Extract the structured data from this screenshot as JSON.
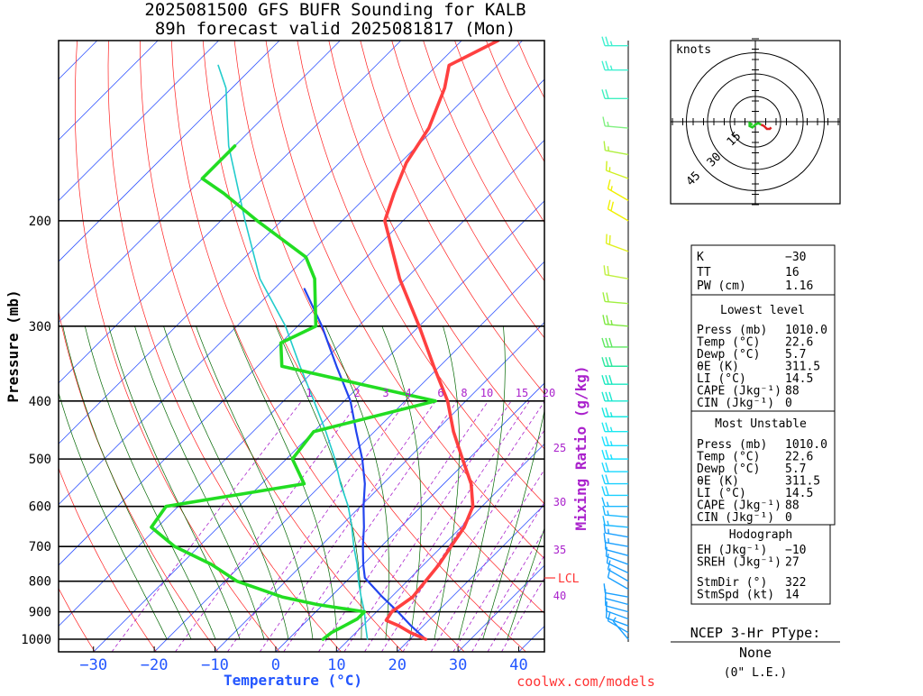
{
  "title": {
    "line1": "2025081500 GFS BUFR Sounding for KALB",
    "line2": "89h forecast valid 2025081817 (Mon)"
  },
  "footer_credit": "coolwx.com/models",
  "colors": {
    "temperature": "#ff4040",
    "dewpoint": "#22dd22",
    "parcel": "#2244ee",
    "wetbulb": "#22cccc",
    "isotherm": "#3355ff",
    "dry_adiabat": "#ff2020",
    "moist_adiabat": "#006600",
    "mixing_ratio": "#aa22cc",
    "mixing_label": "#aa22cc",
    "temp_axis_label": "#2255ff",
    "credit": "#ff3333"
  },
  "chart_data": [
    {
      "type": "line",
      "name": "skew-t",
      "xlabel": "Temperature (°C)",
      "ylabel": "Pressure (mb)",
      "xlim": [
        -38,
        42
      ],
      "ylim": [
        1050,
        100
      ],
      "y_scale": "log",
      "skew_note": "isotherms skewed 45°",
      "x_ticks": [
        -30,
        -20,
        -10,
        0,
        10,
        20,
        30,
        40
      ],
      "x_tick_labels": [
        "−30",
        "−20",
        "−10",
        "0",
        "10",
        "20",
        "30",
        "40"
      ],
      "y_ticks": [
        1000,
        900,
        800,
        700,
        600,
        500,
        400,
        300,
        200
      ],
      "grid": true,
      "mixing_ratio_axis_label": "Mixing Ratio (g/kg)",
      "mixing_ratio_labels_top": [
        "1",
        "2",
        "3",
        "4",
        "6",
        "8",
        "10",
        "15",
        "20"
      ],
      "mixing_ratio_labels_side": [
        "25",
        "30",
        "35",
        "40"
      ],
      "lcl_label": "LCL",
      "lcl_pressure": 790,
      "series": [
        {
          "key": "temperature",
          "points": [
            [
              1000,
              22.6
            ],
            [
              975,
              19
            ],
            [
              950,
              16
            ],
            [
              930,
              13
            ],
            [
              900,
              12.5
            ],
            [
              875,
              13
            ],
            [
              850,
              13.5
            ],
            [
              800,
              13
            ],
            [
              750,
              12.5
            ],
            [
              700,
              11.5
            ],
            [
              650,
              10.5
            ],
            [
              600,
              8.5
            ],
            [
              550,
              4.5
            ],
            [
              500,
              -1
            ],
            [
              450,
              -7
            ],
            [
              400,
              -13
            ],
            [
              350,
              -21
            ],
            [
              300,
              -30
            ],
            [
              250,
              -41
            ],
            [
              200,
              -53
            ],
            [
              180,
              -56
            ],
            [
              160,
              -59
            ],
            [
              140,
              -61
            ],
            [
              120,
              -65
            ],
            [
              110,
              -68
            ],
            [
              100,
              -64
            ]
          ]
        },
        {
          "key": "dewpoint",
          "points": [
            [
              1000,
              5.7
            ],
            [
              975,
              6
            ],
            [
              950,
              7
            ],
            [
              925,
              8
            ],
            [
              900,
              8
            ],
            [
              875,
              -1
            ],
            [
              850,
              -8
            ],
            [
              800,
              -18
            ],
            [
              750,
              -25
            ],
            [
              700,
              -34
            ],
            [
              650,
              -41
            ],
            [
              600,
              -42
            ],
            [
              550,
              -23
            ],
            [
              500,
              -29
            ],
            [
              450,
              -30
            ],
            [
              400,
              -15
            ],
            [
              375,
              -30
            ],
            [
              350,
              -46
            ],
            [
              320,
              -50
            ],
            [
              300,
              -47
            ],
            [
              250,
              -55
            ],
            [
              230,
              -60
            ],
            [
              200,
              -74
            ],
            [
              180,
              -84
            ],
            [
              170,
              -90
            ],
            [
              160,
              -90
            ],
            [
              150,
              -90
            ]
          ]
        },
        {
          "key": "parcel",
          "points": [
            [
              1000,
              22.6
            ],
            [
              950,
              18
            ],
            [
              900,
              13.5
            ],
            [
              850,
              8.5
            ],
            [
              790,
              2.5
            ],
            [
              750,
              0
            ],
            [
              700,
              -3
            ],
            [
              650,
              -6
            ],
            [
              600,
              -9.5
            ],
            [
              550,
              -13
            ],
            [
              500,
              -17.5
            ],
            [
              450,
              -23
            ],
            [
              400,
              -29
            ],
            [
              350,
              -37
            ],
            [
              300,
              -46
            ],
            [
              260,
              -55
            ]
          ]
        },
        {
          "key": "wetbulb",
          "points": [
            [
              1000,
              13
            ],
            [
              950,
              10.5
            ],
            [
              900,
              8
            ],
            [
              850,
              5
            ],
            [
              800,
              2
            ],
            [
              750,
              -1
            ],
            [
              700,
              -4.5
            ],
            [
              650,
              -8
            ],
            [
              600,
              -12
            ],
            [
              550,
              -17
            ],
            [
              500,
              -22
            ],
            [
              450,
              -28
            ],
            [
              400,
              -35
            ],
            [
              350,
              -43
            ],
            [
              300,
              -52
            ],
            [
              250,
              -64
            ],
            [
              200,
              -76
            ],
            [
              150,
              -91
            ],
            [
              120,
              -101
            ],
            [
              110,
              -106
            ]
          ]
        }
      ]
    },
    {
      "type": "scatter",
      "name": "hodograph",
      "units_label": "knots",
      "ring_labels": [
        "15",
        "30",
        "45"
      ],
      "points_u_v": [
        [
          -2,
          -2
        ],
        [
          -4,
          -1
        ],
        [
          -4,
          -3
        ],
        [
          -2,
          -4
        ],
        [
          0,
          -2
        ],
        [
          2,
          -1
        ],
        [
          4,
          -2
        ],
        [
          6,
          -3
        ],
        [
          8,
          -5
        ],
        [
          10,
          -5
        ],
        [
          11,
          -4
        ]
      ],
      "storm_motion_label": "StmDir 322 / StmSpd 14"
    }
  ],
  "wind_profile": {
    "barbs": [
      {
        "p": 1000,
        "dir": 320,
        "spd": 5,
        "color": "#1aa0ff"
      },
      {
        "p": 975,
        "dir": 300,
        "spd": 10,
        "color": "#1aa0ff"
      },
      {
        "p": 950,
        "dir": 290,
        "spd": 10,
        "color": "#1aa0ff"
      },
      {
        "p": 925,
        "dir": 290,
        "spd": 10,
        "color": "#1aa0ff"
      },
      {
        "p": 900,
        "dir": 285,
        "spd": 10,
        "color": "#1aa0ff"
      },
      {
        "p": 875,
        "dir": 285,
        "spd": 10,
        "color": "#1aa0ff"
      },
      {
        "p": 850,
        "dir": 280,
        "spd": 10,
        "color": "#1aa0ff"
      },
      {
        "p": 825,
        "dir": 300,
        "spd": 10,
        "color": "#1aa0ff"
      },
      {
        "p": 800,
        "dir": 300,
        "spd": 10,
        "color": "#1aa0ff"
      },
      {
        "p": 775,
        "dir": 295,
        "spd": 10,
        "color": "#1aa0ff"
      },
      {
        "p": 750,
        "dir": 290,
        "spd": 10,
        "color": "#1aa0ff"
      },
      {
        "p": 725,
        "dir": 285,
        "spd": 10,
        "color": "#1aa0ff"
      },
      {
        "p": 700,
        "dir": 280,
        "spd": 15,
        "color": "#1aa0ff"
      },
      {
        "p": 675,
        "dir": 280,
        "spd": 15,
        "color": "#1aa0ff"
      },
      {
        "p": 650,
        "dir": 275,
        "spd": 15,
        "color": "#1ab8ff"
      },
      {
        "p": 625,
        "dir": 275,
        "spd": 15,
        "color": "#1ab8ff"
      },
      {
        "p": 600,
        "dir": 270,
        "spd": 15,
        "color": "#1ab8ff"
      },
      {
        "p": 575,
        "dir": 270,
        "spd": 20,
        "color": "#1ad0ff"
      },
      {
        "p": 550,
        "dir": 270,
        "spd": 20,
        "color": "#1ad0ff"
      },
      {
        "p": 525,
        "dir": 270,
        "spd": 20,
        "color": "#1ad8ff"
      },
      {
        "p": 500,
        "dir": 270,
        "spd": 25,
        "color": "#1ae0ff"
      },
      {
        "p": 475,
        "dir": 270,
        "spd": 25,
        "color": "#1ae0ff"
      },
      {
        "p": 450,
        "dir": 270,
        "spd": 25,
        "color": "#1ae8f0"
      },
      {
        "p": 425,
        "dir": 270,
        "spd": 25,
        "color": "#1ae8e0"
      },
      {
        "p": 400,
        "dir": 270,
        "spd": 30,
        "color": "#1ae8d0"
      },
      {
        "p": 375,
        "dir": 270,
        "spd": 30,
        "color": "#1ae8c0"
      },
      {
        "p": 350,
        "dir": 270,
        "spd": 30,
        "color": "#2ee8a0"
      },
      {
        "p": 325,
        "dir": 270,
        "spd": 30,
        "color": "#5ee860"
      },
      {
        "p": 300,
        "dir": 275,
        "spd": 25,
        "color": "#7ee840"
      },
      {
        "p": 275,
        "dir": 275,
        "spd": 20,
        "color": "#a0f040"
      },
      {
        "p": 250,
        "dir": 280,
        "spd": 20,
        "color": "#c0f040"
      },
      {
        "p": 225,
        "dir": 290,
        "spd": 20,
        "color": "#e0f020"
      },
      {
        "p": 200,
        "dir": 300,
        "spd": 20,
        "color": "#f0f000"
      },
      {
        "p": 185,
        "dir": 300,
        "spd": 15,
        "color": "#f0f000"
      },
      {
        "p": 170,
        "dir": 290,
        "spd": 15,
        "color": "#d0f020"
      },
      {
        "p": 155,
        "dir": 280,
        "spd": 15,
        "color": "#b0f040"
      },
      {
        "p": 140,
        "dir": 275,
        "spd": 15,
        "color": "#80f080"
      },
      {
        "p": 125,
        "dir": 270,
        "spd": 20,
        "color": "#40f0c0"
      },
      {
        "p": 112,
        "dir": 270,
        "spd": 25,
        "color": "#40f0d0"
      },
      {
        "p": 102,
        "dir": 270,
        "spd": 25,
        "color": "#40f0d0"
      }
    ]
  },
  "indices": {
    "k_label": "K",
    "k_value": "−30",
    "tt_label": "TT",
    "tt_value": "16",
    "pw_label": "PW (cm)",
    "pw_value": "1.16"
  },
  "lowest_level": {
    "header": "Lowest level",
    "rows": [
      {
        "label": "Press (mb)",
        "value": "1010.0"
      },
      {
        "label": "Temp (°C)",
        "value": "22.6"
      },
      {
        "label": "Dewp (°C)",
        "value": "5.7"
      },
      {
        "label": "θE (K)",
        "value": "311.5"
      },
      {
        "label": "LI (°C)",
        "value": "14.5"
      },
      {
        "label": "CAPE (Jkg⁻¹)",
        "value": "88"
      },
      {
        "label": "CIN (Jkg⁻¹)",
        "value": "0"
      }
    ]
  },
  "most_unstable": {
    "header": "Most Unstable",
    "rows": [
      {
        "label": "Press (mb)",
        "value": "1010.0"
      },
      {
        "label": "Temp (°C)",
        "value": "22.6"
      },
      {
        "label": "Dewp (°C)",
        "value": "5.7"
      },
      {
        "label": "θE (K)",
        "value": "311.5"
      },
      {
        "label": "LI (°C)",
        "value": "14.5"
      },
      {
        "label": "CAPE (Jkg⁻¹)",
        "value": "88"
      },
      {
        "label": "CIN (Jkg⁻¹)",
        "value": "0"
      }
    ]
  },
  "hodograph_box": {
    "header": "Hodograph",
    "rows": [
      {
        "label": "EH (Jkg⁻¹)",
        "value": "−10"
      },
      {
        "label": "SREH (Jkg⁻¹)",
        "value": "27"
      },
      {
        "label": "StmDir (°)",
        "value": "322"
      },
      {
        "label": "StmSpd (kt)",
        "value": "14"
      }
    ]
  },
  "ptype": {
    "header": "NCEP 3-Hr PType:",
    "value": "None",
    "amount": "(0\" L.E.)"
  }
}
